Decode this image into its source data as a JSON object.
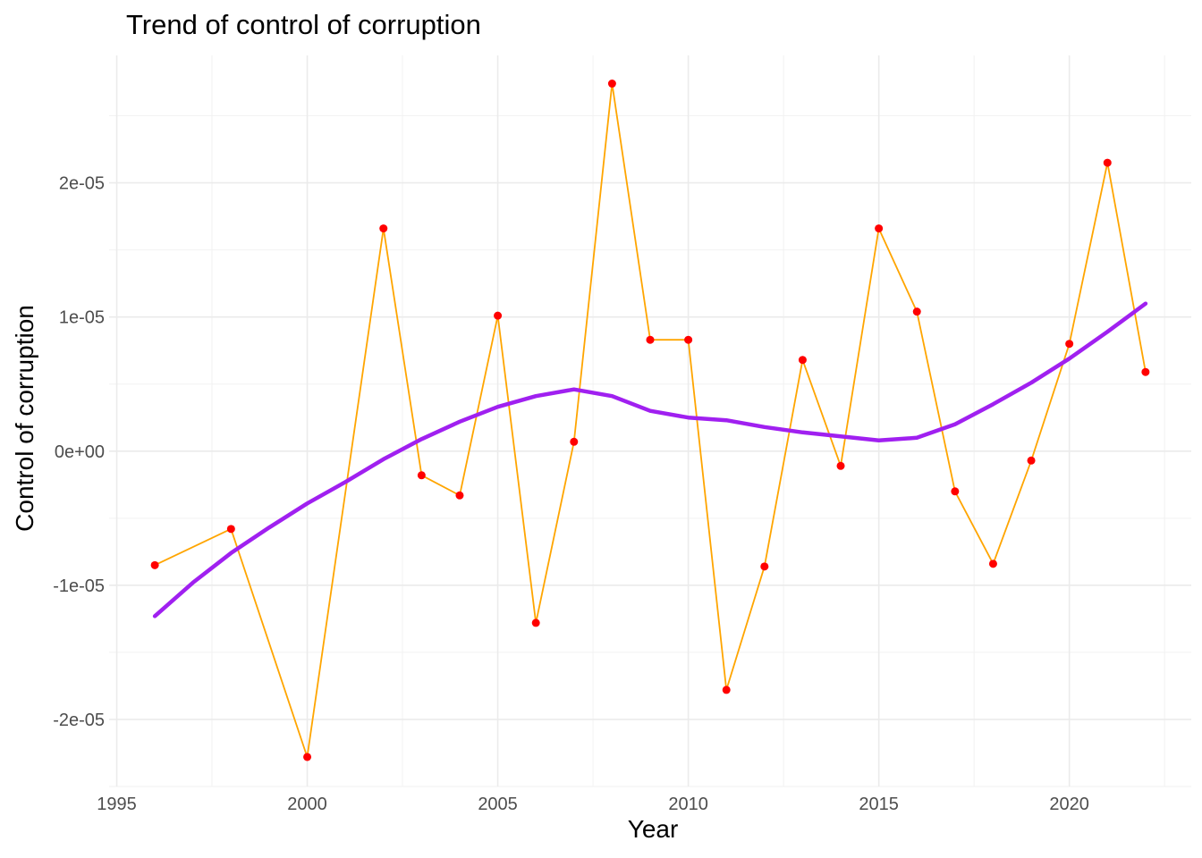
{
  "chart_data": {
    "type": "line",
    "title": "Trend of control of corruption",
    "xlabel": "Year",
    "ylabel": "Control of corruption",
    "xlim": [
      1994.8,
      2023.2
    ],
    "ylim": [
      -2.5e-05,
      2.95e-05
    ],
    "x_ticks": [
      1995,
      2000,
      2005,
      2010,
      2015,
      2020
    ],
    "x_tick_labels": [
      "1995",
      "2000",
      "2005",
      "2010",
      "2015",
      "2020"
    ],
    "y_ticks": [
      -2e-05,
      -1e-05,
      0,
      1e-05,
      2e-05
    ],
    "y_tick_labels": [
      "-2e-05",
      "-1e-05",
      "0e+00",
      "1e-05",
      "2e-05"
    ],
    "grid": true,
    "series": [
      {
        "kind": "line+points",
        "line_color": "#FFA500",
        "point_color": "#FF0000",
        "x": [
          1996,
          1998,
          2000,
          2002,
          2003,
          2004,
          2005,
          2006,
          2007,
          2008,
          2009,
          2010,
          2011,
          2012,
          2013,
          2014,
          2015,
          2016,
          2017,
          2018,
          2019,
          2020,
          2021,
          2022
        ],
        "y": [
          -8.5e-06,
          -5.8e-06,
          -2.28e-05,
          1.66e-05,
          -1.8e-06,
          -3.3e-06,
          1.01e-05,
          -1.28e-05,
          7e-07,
          2.74e-05,
          8.3e-06,
          8.3e-06,
          -1.78e-05,
          -8.6e-06,
          6.8e-06,
          -1.1e-06,
          1.66e-05,
          1.04e-05,
          -3e-06,
          -8.4e-06,
          -7e-07,
          8e-06,
          2.15e-05,
          5.9e-06
        ]
      },
      {
        "kind": "smooth",
        "line_color": "#A020F0",
        "x": [
          1996,
          1997,
          1998,
          1999,
          2000,
          2001,
          2002,
          2003,
          2004,
          2005,
          2006,
          2007,
          2008,
          2009,
          2010,
          2011,
          2012,
          2013,
          2014,
          2015,
          2016,
          2017,
          2018,
          2019,
          2020,
          2021,
          2022
        ],
        "y": [
          -1.23e-05,
          -9.8e-06,
          -7.6e-06,
          -5.7e-06,
          -3.9e-06,
          -2.3e-06,
          -6e-07,
          9e-07,
          2.2e-06,
          3.3e-06,
          4.1e-06,
          4.6e-06,
          4.1e-06,
          3e-06,
          2.5e-06,
          2.3e-06,
          1.8e-06,
          1.4e-06,
          1.1e-06,
          8e-07,
          1e-06,
          2e-06,
          3.5e-06,
          5.1e-06,
          6.9e-06,
          8.9e-06,
          1.1e-05
        ]
      }
    ]
  }
}
